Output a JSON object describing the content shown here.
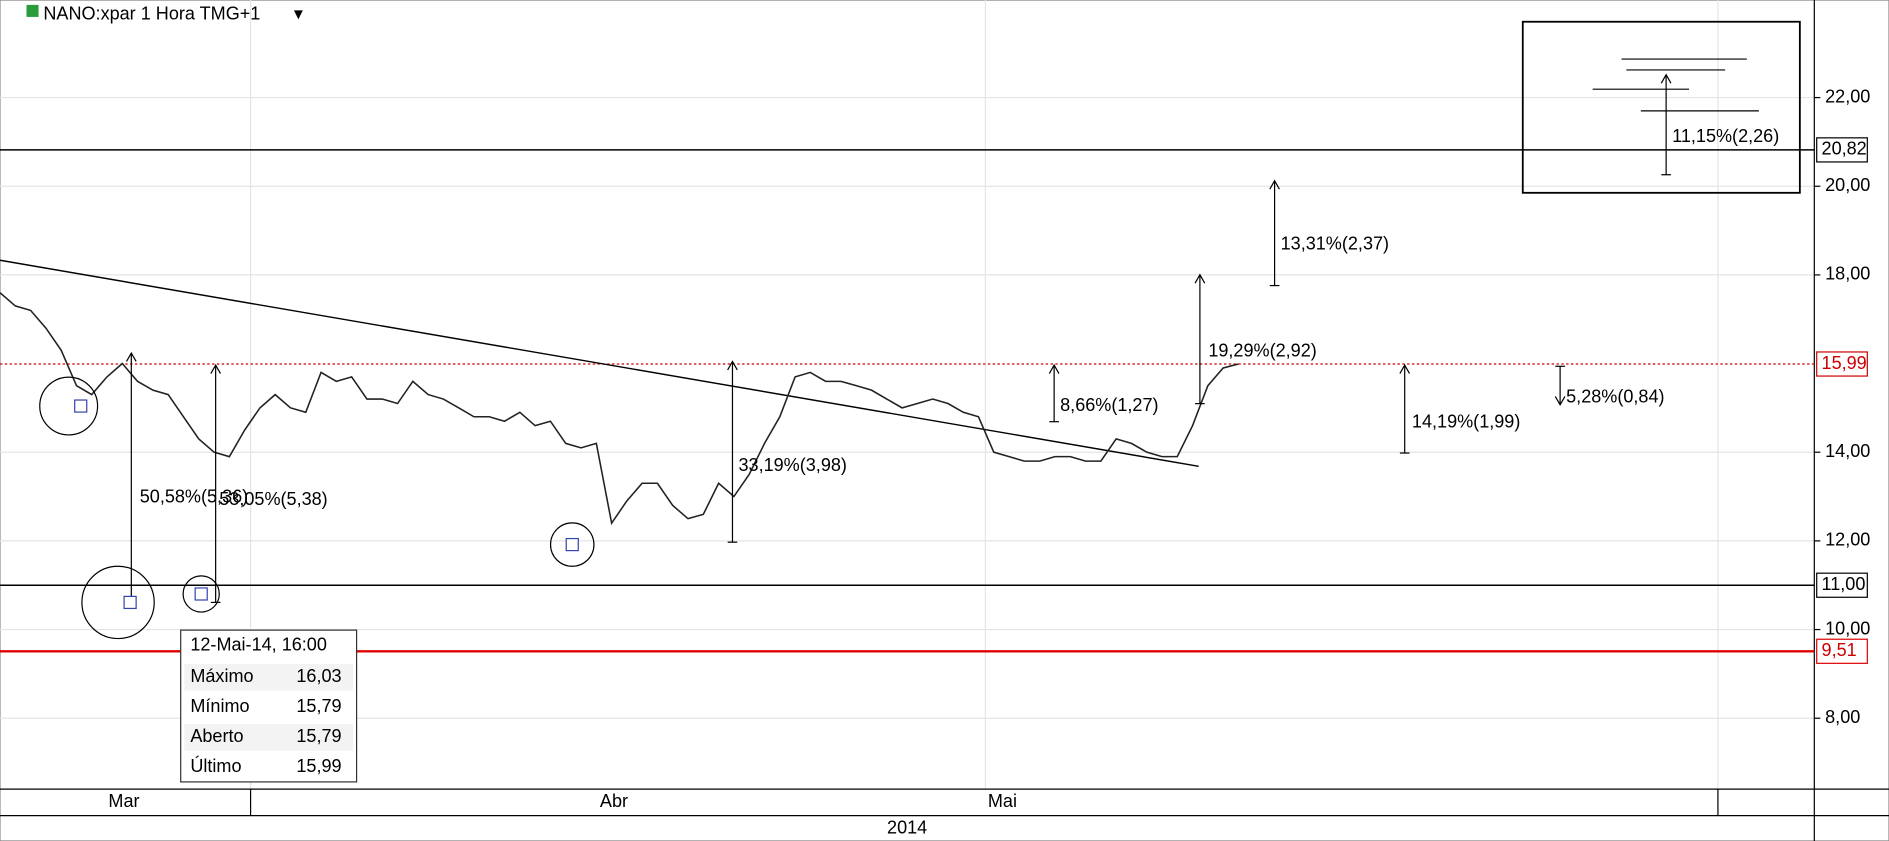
{
  "chart_data": {
    "type": "line",
    "title": "NANO:xpar 1 Hora TMG+1",
    "series": [
      {
        "color": "#222222",
        "values": [
          17.6,
          17.3,
          17.2,
          16.8,
          16.3,
          15.5,
          15.3,
          15.7,
          16.0,
          15.6,
          15.4,
          15.3,
          14.8,
          14.3,
          14.0,
          13.9,
          14.5,
          15.0,
          15.3,
          15.0,
          14.9,
          15.8,
          15.6,
          15.7,
          15.2,
          15.2,
          15.1,
          15.6,
          15.3,
          15.2,
          15.0,
          14.8,
          14.8,
          14.7,
          14.9,
          14.6,
          14.7,
          14.2,
          14.1,
          14.2,
          12.4,
          12.9,
          13.3,
          13.3,
          12.8,
          12.5,
          12.6,
          13.3,
          13.0,
          13.5,
          14.2,
          14.8,
          15.7,
          15.8,
          15.6,
          15.6,
          15.5,
          15.4,
          15.2,
          15.0,
          15.1,
          15.2,
          15.1,
          14.9,
          14.8,
          14.0,
          13.9,
          13.8,
          13.8,
          13.9,
          13.9,
          13.8,
          13.8,
          14.3,
          14.2,
          14.0,
          13.9,
          13.9,
          14.6,
          15.5,
          15.9,
          15.99
        ]
      }
    ],
    "ylim": [
      6.4,
      24.2
    ],
    "yticks": [
      {
        "value": 8,
        "label": "8,00"
      },
      {
        "value": 10,
        "label": "10,00"
      },
      {
        "value": 12,
        "label": "12,00"
      },
      {
        "value": 14,
        "label": "14,00"
      },
      {
        "value": 18,
        "label": "18,00"
      },
      {
        "value": 20,
        "label": "20,00"
      },
      {
        "value": 22,
        "label": "22,00"
      }
    ],
    "levels": [
      {
        "value": 20.82,
        "label": "20,82",
        "color": "#000000"
      },
      {
        "value": 11,
        "label": "11,00",
        "color": "#000000"
      },
      {
        "value": 9.51,
        "label": "9,51",
        "color": "#dd0000"
      },
      {
        "value": 15.99,
        "label": "15,99",
        "color": "#cc0000"
      }
    ],
    "x_labels": [
      "Mar",
      "Abr",
      "Mai"
    ],
    "x_year": "2014",
    "annotations": [
      "50,58%(5,36)",
      "53,05%(5,38)",
      "33,19%(3,98)",
      "8,66%(1,27)",
      "19,29%(2,92)",
      "13,31%(2,37)",
      "14,19%(1,99)",
      "5,28%(0,84)",
      "11,15%(2,26)"
    ],
    "tooltip": {
      "title": "12-Mai-14, 16:00",
      "rows": [
        [
          "Máximo",
          "16,03"
        ],
        [
          "Mínimo",
          "15,79"
        ],
        [
          "Aberto",
          "15,79"
        ],
        [
          "Último",
          "15,99"
        ]
      ]
    }
  }
}
